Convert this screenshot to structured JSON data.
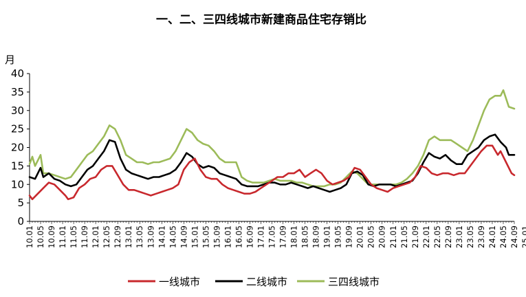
{
  "chart_data": {
    "type": "line",
    "title": "一、二、三四线城市新建商品住宅存销比",
    "ylabel": "月",
    "ylim": [
      0,
      40
    ],
    "yticks": [
      0,
      5,
      10,
      15,
      20,
      25,
      30,
      35,
      40
    ],
    "grid": false,
    "legend_position": "bottom",
    "x_tick_labels": [
      "10.01",
      "10.05",
      "10.09",
      "11.01",
      "11.05",
      "11.09",
      "12.01",
      "12.05",
      "12.09",
      "13.01",
      "13.05",
      "13.09",
      "14.01",
      "14.05",
      "14.09",
      "15.01",
      "15.05",
      "15.09",
      "16.01",
      "16.05",
      "16.09",
      "17.01",
      "17.05",
      "17.09",
      "18.01",
      "18.05",
      "18.09",
      "19.01",
      "19.05",
      "19.09",
      "20.01",
      "20.05",
      "20.09",
      "21.01",
      "21.05",
      "21.09",
      "22.01",
      "22.05",
      "22.09",
      "23.01",
      "23.05",
      "23.09",
      "24.01",
      "24.05",
      "24.09",
      "25.01"
    ],
    "series": [
      {
        "name": "一线城市",
        "color": "#c8282d",
        "points": [
          [
            0,
            7
          ],
          [
            1,
            6
          ],
          [
            3,
            7.5
          ],
          [
            5,
            9
          ],
          [
            7,
            10.5
          ],
          [
            9,
            10
          ],
          [
            11,
            8.5
          ],
          [
            13,
            7
          ],
          [
            14,
            6
          ],
          [
            16,
            6.5
          ],
          [
            18,
            9
          ],
          [
            20,
            10
          ],
          [
            22,
            11.5
          ],
          [
            24,
            12
          ],
          [
            26,
            14
          ],
          [
            28,
            15
          ],
          [
            30,
            15
          ],
          [
            32,
            12.5
          ],
          [
            34,
            10
          ],
          [
            36,
            8.5
          ],
          [
            38,
            8.5
          ],
          [
            40,
            8
          ],
          [
            42,
            7.5
          ],
          [
            44,
            7
          ],
          [
            46,
            7.5
          ],
          [
            48,
            8
          ],
          [
            50,
            8.5
          ],
          [
            52,
            9
          ],
          [
            54,
            10
          ],
          [
            56,
            14
          ],
          [
            58,
            16
          ],
          [
            60,
            17
          ],
          [
            62,
            14
          ],
          [
            64,
            12
          ],
          [
            66,
            11.5
          ],
          [
            68,
            11.5
          ],
          [
            70,
            10
          ],
          [
            72,
            9
          ],
          [
            74,
            8.5
          ],
          [
            76,
            8
          ],
          [
            78,
            7.5
          ],
          [
            80,
            7.5
          ],
          [
            82,
            8
          ],
          [
            84,
            9
          ],
          [
            86,
            10
          ],
          [
            88,
            11
          ],
          [
            90,
            12
          ],
          [
            92,
            12
          ],
          [
            94,
            13
          ],
          [
            96,
            13
          ],
          [
            98,
            14
          ],
          [
            100,
            12
          ],
          [
            102,
            13
          ],
          [
            104,
            14
          ],
          [
            106,
            13
          ],
          [
            108,
            11
          ],
          [
            110,
            10
          ],
          [
            112,
            10.5
          ],
          [
            114,
            11
          ],
          [
            116,
            12
          ],
          [
            118,
            14.5
          ],
          [
            120,
            14
          ],
          [
            122,
            12
          ],
          [
            124,
            10
          ],
          [
            126,
            9
          ],
          [
            128,
            8.5
          ],
          [
            130,
            8
          ],
          [
            132,
            9
          ],
          [
            134,
            9.5
          ],
          [
            136,
            10
          ],
          [
            138,
            10.5
          ],
          [
            140,
            12
          ],
          [
            142,
            15
          ],
          [
            144,
            14.5
          ],
          [
            146,
            13
          ],
          [
            148,
            12.5
          ],
          [
            150,
            13
          ],
          [
            152,
            13
          ],
          [
            154,
            12.5
          ],
          [
            156,
            13
          ],
          [
            158,
            13
          ],
          [
            160,
            15
          ],
          [
            162,
            17
          ],
          [
            164,
            19
          ],
          [
            166,
            20.5
          ],
          [
            168,
            20.5
          ],
          [
            170,
            18
          ],
          [
            171,
            19
          ],
          [
            173,
            16
          ],
          [
            175,
            13
          ],
          [
            176,
            12.5
          ]
        ]
      },
      {
        "name": "二线城市",
        "color": "#000000",
        "points": [
          [
            0,
            12
          ],
          [
            2,
            11.5
          ],
          [
            4,
            14.5
          ],
          [
            5,
            12
          ],
          [
            7,
            13
          ],
          [
            9,
            11.5
          ],
          [
            11,
            11
          ],
          [
            13,
            10
          ],
          [
            15,
            9.5
          ],
          [
            17,
            10
          ],
          [
            19,
            12
          ],
          [
            21,
            14
          ],
          [
            23,
            15
          ],
          [
            25,
            17
          ],
          [
            27,
            19
          ],
          [
            29,
            22
          ],
          [
            31,
            21.5
          ],
          [
            33,
            17
          ],
          [
            35,
            14
          ],
          [
            37,
            13
          ],
          [
            39,
            12.5
          ],
          [
            41,
            12
          ],
          [
            43,
            11.5
          ],
          [
            45,
            12
          ],
          [
            47,
            12
          ],
          [
            49,
            12.5
          ],
          [
            51,
            13
          ],
          [
            53,
            14
          ],
          [
            55,
            16
          ],
          [
            57,
            18.5
          ],
          [
            59,
            17.5
          ],
          [
            61,
            15.5
          ],
          [
            63,
            14.5
          ],
          [
            65,
            15
          ],
          [
            67,
            14.5
          ],
          [
            69,
            13
          ],
          [
            71,
            12.5
          ],
          [
            73,
            12
          ],
          [
            75,
            11.5
          ],
          [
            77,
            10
          ],
          [
            79,
            9.5
          ],
          [
            81,
            9.5
          ],
          [
            83,
            9.5
          ],
          [
            85,
            10
          ],
          [
            87,
            10.5
          ],
          [
            89,
            10.5
          ],
          [
            91,
            10
          ],
          [
            93,
            10
          ],
          [
            95,
            10.5
          ],
          [
            97,
            10
          ],
          [
            99,
            9.5
          ],
          [
            101,
            9
          ],
          [
            103,
            9.5
          ],
          [
            105,
            9
          ],
          [
            107,
            8.5
          ],
          [
            109,
            8
          ],
          [
            111,
            8.5
          ],
          [
            113,
            9
          ],
          [
            115,
            10
          ],
          [
            117,
            13
          ],
          [
            119,
            13.5
          ],
          [
            121,
            12.5
          ],
          [
            123,
            10
          ],
          [
            125,
            9.5
          ],
          [
            127,
            10
          ],
          [
            129,
            10
          ],
          [
            131,
            10
          ],
          [
            133,
            9.5
          ],
          [
            135,
            10
          ],
          [
            137,
            10.5
          ],
          [
            139,
            11
          ],
          [
            141,
            13
          ],
          [
            143,
            16
          ],
          [
            145,
            18.5
          ],
          [
            147,
            17.5
          ],
          [
            149,
            17
          ],
          [
            151,
            18
          ],
          [
            153,
            16.5
          ],
          [
            155,
            15.5
          ],
          [
            157,
            15.5
          ],
          [
            159,
            18
          ],
          [
            161,
            19
          ],
          [
            163,
            20
          ],
          [
            165,
            22
          ],
          [
            167,
            23
          ],
          [
            169,
            23.5
          ],
          [
            171,
            21.5
          ],
          [
            173,
            20
          ],
          [
            174,
            18
          ],
          [
            176,
            18
          ]
        ]
      },
      {
        "name": "三四线城市",
        "color": "#9cbb59",
        "points": [
          [
            0,
            15.5
          ],
          [
            1,
            17.5
          ],
          [
            2,
            15
          ],
          [
            4,
            18
          ],
          [
            5,
            13
          ],
          [
            7,
            13
          ],
          [
            9,
            12.5
          ],
          [
            11,
            12
          ],
          [
            13,
            11.5
          ],
          [
            15,
            12
          ],
          [
            17,
            14
          ],
          [
            19,
            16
          ],
          [
            21,
            18
          ],
          [
            23,
            19
          ],
          [
            25,
            21
          ],
          [
            27,
            23
          ],
          [
            29,
            26
          ],
          [
            31,
            25
          ],
          [
            33,
            22
          ],
          [
            35,
            18
          ],
          [
            37,
            17
          ],
          [
            39,
            16
          ],
          [
            41,
            16
          ],
          [
            43,
            15.5
          ],
          [
            45,
            16
          ],
          [
            47,
            16
          ],
          [
            49,
            16.5
          ],
          [
            51,
            17
          ],
          [
            53,
            19
          ],
          [
            55,
            22
          ],
          [
            57,
            25
          ],
          [
            59,
            24
          ],
          [
            61,
            22
          ],
          [
            63,
            21
          ],
          [
            65,
            20.5
          ],
          [
            67,
            19
          ],
          [
            69,
            17
          ],
          [
            71,
            16
          ],
          [
            73,
            16
          ],
          [
            75,
            16
          ],
          [
            77,
            12
          ],
          [
            79,
            11
          ],
          [
            81,
            10.5
          ],
          [
            83,
            10.5
          ],
          [
            85,
            10.5
          ],
          [
            87,
            11
          ],
          [
            89,
            11.5
          ],
          [
            91,
            11
          ],
          [
            93,
            11
          ],
          [
            95,
            11
          ],
          [
            97,
            10.5
          ],
          [
            99,
            10.5
          ],
          [
            101,
            10
          ],
          [
            103,
            9.5
          ],
          [
            105,
            9.5
          ],
          [
            107,
            9.5
          ],
          [
            109,
            10
          ],
          [
            111,
            10
          ],
          [
            113,
            10.5
          ],
          [
            115,
            12
          ],
          [
            117,
            13.5
          ],
          [
            119,
            13
          ],
          [
            121,
            11.5
          ],
          [
            123,
            10
          ],
          [
            125,
            10
          ],
          [
            127,
            10
          ],
          [
            129,
            10
          ],
          [
            131,
            10
          ],
          [
            133,
            10
          ],
          [
            135,
            10.5
          ],
          [
            137,
            11.5
          ],
          [
            139,
            13
          ],
          [
            141,
            15
          ],
          [
            143,
            18
          ],
          [
            145,
            22
          ],
          [
            147,
            23
          ],
          [
            149,
            22
          ],
          [
            151,
            22
          ],
          [
            153,
            22
          ],
          [
            155,
            21
          ],
          [
            157,
            20
          ],
          [
            159,
            19
          ],
          [
            161,
            22
          ],
          [
            163,
            26
          ],
          [
            165,
            30
          ],
          [
            167,
            33
          ],
          [
            169,
            34
          ],
          [
            171,
            34
          ],
          [
            172,
            35.5
          ],
          [
            174,
            31
          ],
          [
            176,
            30.5
          ]
        ]
      }
    ]
  }
}
